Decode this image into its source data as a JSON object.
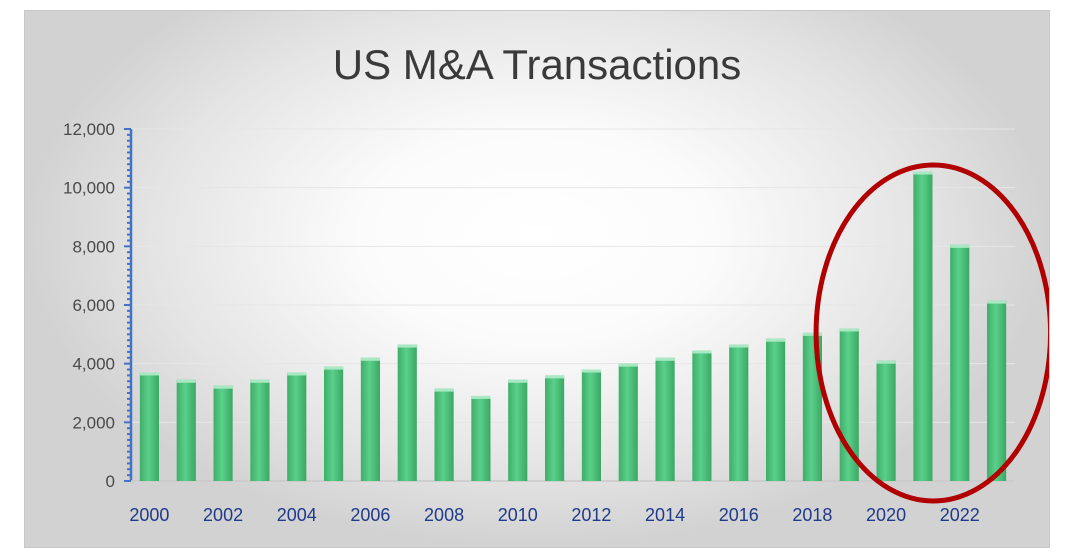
{
  "chart_data": {
    "type": "bar",
    "title": "US M&A Transactions",
    "xlabel": "",
    "ylabel": "",
    "ylim": [
      0,
      12000
    ],
    "yticks": [
      0,
      2000,
      4000,
      6000,
      8000,
      10000,
      12000
    ],
    "ytick_labels": [
      "0",
      "2,000",
      "4,000",
      "6,000",
      "8,000",
      "10,000",
      "12,000"
    ],
    "categories": [
      "2000",
      "2001",
      "2002",
      "2003",
      "2004",
      "2005",
      "2006",
      "2007",
      "2008",
      "2009",
      "2010",
      "2011",
      "2012",
      "2013",
      "2014",
      "2015",
      "2016",
      "2017",
      "2018",
      "2019",
      "2020",
      "2021",
      "2022",
      "2023"
    ],
    "x_tick_labels": [
      "2000",
      "2002",
      "2004",
      "2006",
      "2008",
      "2010",
      "2012",
      "2014",
      "2016",
      "2018",
      "2020",
      "2022"
    ],
    "values": [
      3700,
      3450,
      3250,
      3450,
      3700,
      3900,
      4200,
      4650,
      3150,
      2900,
      3450,
      3600,
      3800,
      4000,
      4200,
      4450,
      4650,
      4850,
      5050,
      5200,
      4100,
      10550,
      8050,
      6150
    ],
    "bar_color": "#4cc27b",
    "annotation": {
      "shape": "ellipse",
      "color": "#b00000",
      "highlights": [
        "2020",
        "2021",
        "2022",
        "2023"
      ]
    },
    "grid": true,
    "legend": "none"
  }
}
